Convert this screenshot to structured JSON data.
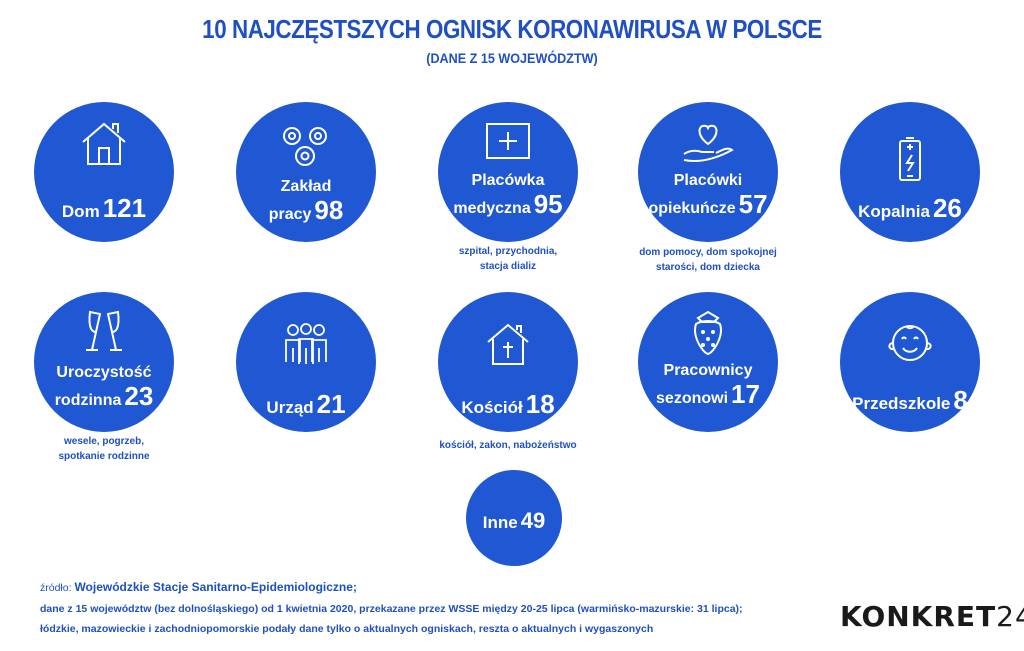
{
  "header": {
    "title": "10 NAJCZĘSTSZYCH OGNISK KORONAWIRUSA W POLSCE",
    "subtitle": "(DANE Z 15 WOJEWÓDZTW)"
  },
  "colors": {
    "accent": "#1f58d2",
    "text_blue": "#1f4fc4"
  },
  "items": [
    {
      "label": "Dom",
      "value": "121",
      "icon": "house-icon"
    },
    {
      "label_1": "Zakład",
      "label_2": "pracy",
      "value": "98",
      "icon": "gears-icon"
    },
    {
      "label_1": "Placówka",
      "label_2": "medyczna",
      "value": "95",
      "icon": "medical-cross-icon",
      "note_1": "szpital, przychodnia,",
      "note_2": "stacja dializ"
    },
    {
      "label_1": "Placówki",
      "label_2": "opiekuńcze",
      "value": "57",
      "icon": "heart-hand-icon",
      "note_1": "dom pomocy, dom spokojnej",
      "note_2": "starości, dom dziecka"
    },
    {
      "label": "Kopalnia",
      "value": "26",
      "icon": "battery-icon"
    },
    {
      "label_1": "Uroczystość",
      "label_2": "rodzinna",
      "value": "23",
      "icon": "champagne-glasses-icon",
      "note_1": "wesele, pogrzeb,",
      "note_2": "spotkanie rodzinne"
    },
    {
      "label": "Urząd",
      "value": "21",
      "icon": "people-icon"
    },
    {
      "label": "Kościół",
      "value": "18",
      "icon": "church-icon",
      "note_1": "kościół, zakon, nabożeństwo"
    },
    {
      "label_1": "Pracownicy",
      "label_2": "sezonowi",
      "value": "17",
      "icon": "strawberry-icon"
    },
    {
      "label": "Przedszkole",
      "value": "8",
      "icon": "child-face-icon"
    },
    {
      "label": "Inne",
      "value": "49"
    }
  ],
  "footer": {
    "source_prefix": "źródło:",
    "source": "Wojewódzkie Stacje Sanitarno-Epidemiologiczne;",
    "line_2": "dane z 15 województw (bez dolnośląskiego) od 1 kwietnia 2020, przekazane przez WSSE między 20-25 lipca (warmińsko-mazurskie: 31 lipca);",
    "line_3": "łódzkie, mazowieckie i zachodniopomorskie podały dane tylko o aktualnych ogniskach, reszta o aktualnych i wygaszonych"
  },
  "logo": {
    "text": "KONKRET",
    "number": "24"
  }
}
